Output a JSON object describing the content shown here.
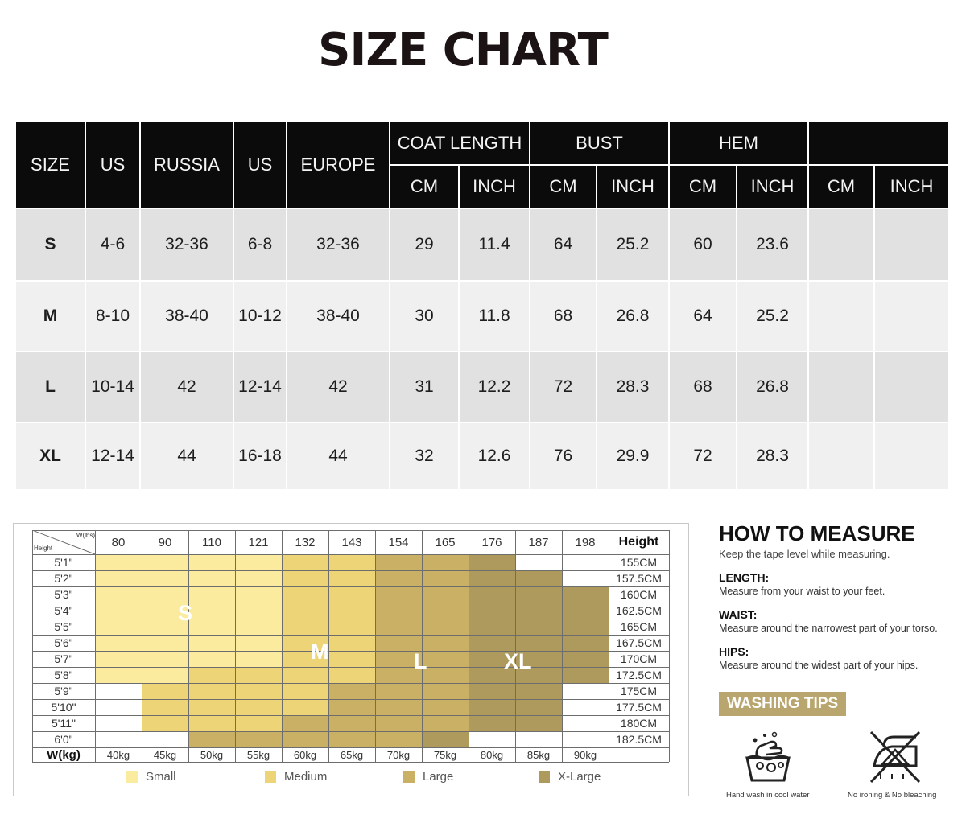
{
  "title": "SIZE CHART",
  "size_table": {
    "top_headers": [
      "SIZE",
      "US",
      "RUSSIA",
      "US",
      "EUROPE"
    ],
    "group_headers": [
      "COAT LENGTH",
      "BUST",
      "HEM",
      ""
    ],
    "sub_headers": [
      "CM",
      "INCH",
      "CM",
      "INCH",
      "CM",
      "INCH",
      "CM",
      "INCH"
    ],
    "rows": [
      [
        "S",
        "4-6",
        "32-36",
        "6-8",
        "32-36",
        "29",
        "11.4",
        "64",
        "25.2",
        "60",
        "23.6",
        "",
        ""
      ],
      [
        "M",
        "8-10",
        "38-40",
        "10-12",
        "38-40",
        "30",
        "11.8",
        "68",
        "26.8",
        "64",
        "25.2",
        "",
        ""
      ],
      [
        "L",
        "10-14",
        "42",
        "12-14",
        "42",
        "31",
        "12.2",
        "72",
        "28.3",
        "68",
        "26.8",
        "",
        ""
      ],
      [
        "XL",
        "12-14",
        "44",
        "16-18",
        "44",
        "32",
        "12.6",
        "76",
        "29.9",
        "72",
        "28.3",
        "",
        ""
      ]
    ]
  },
  "weight_height_chart": {
    "corner_top": "W(lbs)",
    "corner_bottom": "Height",
    "weights_lbs": [
      "80",
      "90",
      "110",
      "121",
      "132",
      "143",
      "154",
      "165",
      "176",
      "187",
      "198"
    ],
    "height_header": "Height",
    "heights_ft": [
      "5'1\"",
      "5'2\"",
      "5'3\"",
      "5'4\"",
      "5'5\"",
      "5'6\"",
      "5'7\"",
      "5'8\"",
      "5'9\"",
      "5'10\"",
      "5'11\"",
      "6'0\""
    ],
    "heights_cm": [
      "155CM",
      "157.5CM",
      "160CM",
      "162.5CM",
      "165CM",
      "167.5CM",
      "170CM",
      "172.5CM",
      "175CM",
      "177.5CM",
      "180CM",
      "182.5CM"
    ],
    "weights_kg_label": "W(kg)",
    "weights_kg": [
      "40kg",
      "45kg",
      "50kg",
      "55kg",
      "60kg",
      "65kg",
      "70kg",
      "75kg",
      "80kg",
      "85kg",
      "90kg"
    ],
    "size_letters": [
      "S",
      "M",
      "L",
      "XL"
    ],
    "grid": [
      [
        1,
        1,
        1,
        1,
        2,
        2,
        3,
        3,
        4,
        0,
        0
      ],
      [
        1,
        1,
        1,
        1,
        2,
        2,
        3,
        3,
        4,
        4,
        0
      ],
      [
        1,
        1,
        1,
        1,
        2,
        2,
        3,
        3,
        4,
        4,
        4
      ],
      [
        1,
        1,
        1,
        1,
        2,
        2,
        3,
        3,
        4,
        4,
        4
      ],
      [
        1,
        1,
        1,
        1,
        2,
        2,
        3,
        3,
        4,
        4,
        4
      ],
      [
        1,
        1,
        1,
        1,
        2,
        2,
        3,
        3,
        4,
        4,
        4
      ],
      [
        1,
        1,
        1,
        1,
        2,
        2,
        3,
        3,
        4,
        4,
        4
      ],
      [
        1,
        1,
        2,
        2,
        2,
        2,
        3,
        3,
        4,
        4,
        4
      ],
      [
        0,
        2,
        2,
        2,
        2,
        3,
        3,
        3,
        4,
        4,
        0
      ],
      [
        0,
        2,
        2,
        2,
        2,
        3,
        3,
        3,
        4,
        4,
        0
      ],
      [
        0,
        2,
        2,
        2,
        3,
        3,
        3,
        3,
        4,
        4,
        0
      ],
      [
        0,
        0,
        3,
        3,
        3,
        3,
        3,
        4,
        0,
        0,
        0
      ]
    ],
    "size_colors": [
      "#ffffff",
      "#fbeb9e",
      "#ecd477",
      "#c9b065",
      "#ad9a5c"
    ],
    "legend": [
      {
        "label": "Small",
        "color": "#fbeb9e"
      },
      {
        "label": "Medium",
        "color": "#ecd477"
      },
      {
        "label": "Large",
        "color": "#c9b065"
      },
      {
        "label": "X-Large",
        "color": "#ad9a5c"
      }
    ]
  },
  "how_to_measure": {
    "title": "HOW TO MEASURE",
    "subtitle": "Keep the tape level while measuring.",
    "items": [
      {
        "heading": "LENGTH:",
        "text": "Measure from your waist to your feet."
      },
      {
        "heading": "WAIST:",
        "text": "Measure around the narrowest part of your torso."
      },
      {
        "heading": "HIPS:",
        "text": "Measure around the widest part of your hips."
      }
    ]
  },
  "washing_tips": {
    "title": "WASHING TIPS",
    "items": [
      {
        "icon": "hand-wash-icon",
        "label": "Hand wash in cool water"
      },
      {
        "icon": "no-iron-no-bleach-icon",
        "label": "No ironing & No bleaching"
      }
    ]
  }
}
